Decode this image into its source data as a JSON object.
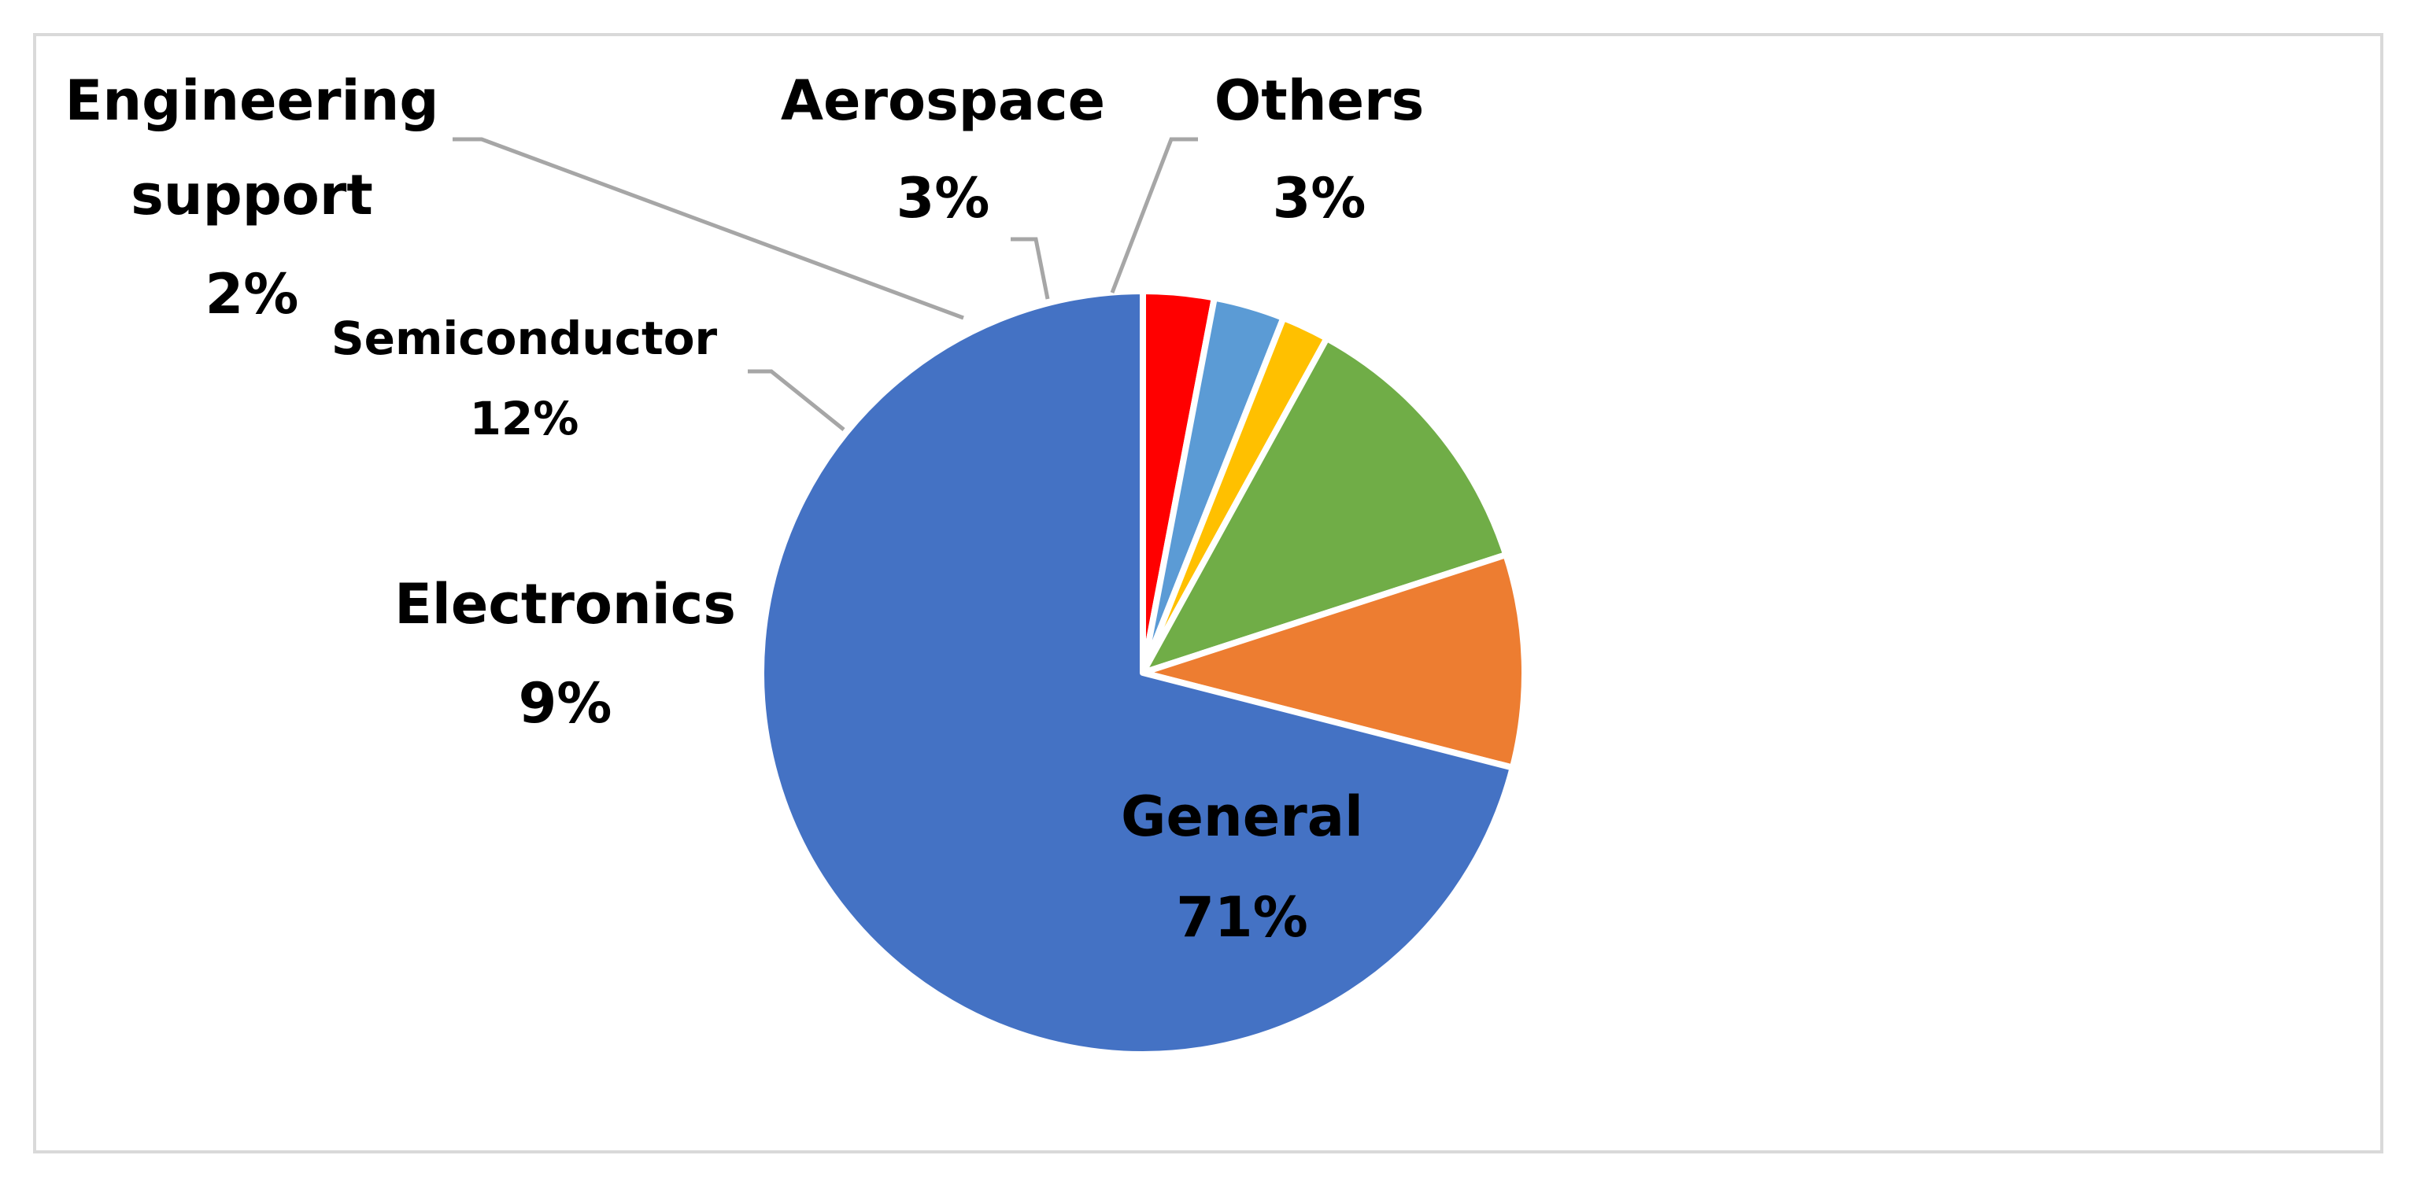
{
  "chart_data": {
    "type": "pie",
    "title": "",
    "slices": [
      {
        "label": "General",
        "value": 71,
        "value_label": "71%",
        "color": "#4472C4"
      },
      {
        "label": "Electronics",
        "value": 9,
        "value_label": "9%",
        "color": "#ED7D31"
      },
      {
        "label": "Semiconductor",
        "value": 12,
        "value_label": "12%",
        "color": "#70AD47"
      },
      {
        "label": "Engineering support",
        "value": 2,
        "value_label": "2%",
        "color": "#FFC000"
      },
      {
        "label": "Aerospace",
        "value": 3,
        "value_label": "3%",
        "color": "#5B9BD5"
      },
      {
        "label": "Others",
        "value": 3,
        "value_label": "3%",
        "color": "#FF0000"
      }
    ],
    "start_position": "12 o'clock",
    "direction": "clockwise",
    "legend": "none",
    "data_labels": "category name and percentage",
    "leader_line_color": "#a6a6a6",
    "slice_border_color": "#ffffff"
  }
}
